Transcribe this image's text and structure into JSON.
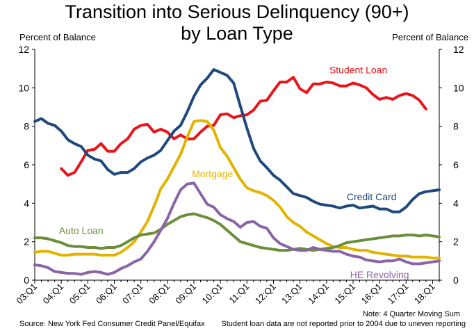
{
  "chart_data": {
    "type": "line",
    "title": [
      "Transition into Serious Delinquency (90+)",
      "by Loan Type"
    ],
    "ylabel_left": "Percent of Balance",
    "ylabel_right": "Percent of Balance",
    "ylim": [
      0,
      12
    ],
    "yticks": [
      0,
      2,
      4,
      6,
      8,
      10,
      12
    ],
    "xlim": [
      2003.0,
      2018.25
    ],
    "xticks": [
      "03:Q1",
      "04:Q1",
      "05:Q1",
      "06:Q1",
      "07:Q1",
      "08:Q1",
      "09:Q1",
      "10:Q1",
      "11:Q1",
      "12:Q1",
      "13:Q1",
      "14:Q1",
      "15:Q1",
      "16:Q1",
      "17:Q1",
      "18:Q1"
    ],
    "grid": false,
    "legend": "inline labels",
    "series": [
      {
        "name": "Student Loan",
        "color": "#e8161b",
        "start": 2004.0,
        "values": [
          5.8,
          5.45,
          5.6,
          6.15,
          6.75,
          6.8,
          7.1,
          6.7,
          6.7,
          7.1,
          7.35,
          7.85,
          8.05,
          8.1,
          7.7,
          7.85,
          7.7,
          7.35,
          7.55,
          7.35,
          7.35,
          7.7,
          8.0,
          8.05,
          8.6,
          8.65,
          8.45,
          8.55,
          8.6,
          8.85,
          9.3,
          9.35,
          9.85,
          10.3,
          10.3,
          10.55,
          9.95,
          9.75,
          10.2,
          10.2,
          10.3,
          10.25,
          10.1,
          10.1,
          10.25,
          10.15,
          10.0,
          9.65,
          9.4,
          9.5,
          9.4,
          9.6,
          9.7,
          9.6,
          9.35,
          8.9
        ]
      },
      {
        "name": "Credit Card",
        "color": "#1f497d",
        "start": 2003.0,
        "values": [
          8.25,
          8.4,
          8.15,
          8.05,
          7.75,
          7.3,
          7.1,
          6.95,
          6.5,
          6.3,
          6.2,
          5.75,
          5.5,
          5.6,
          5.6,
          5.8,
          6.15,
          6.35,
          6.5,
          6.75,
          7.25,
          7.75,
          8.05,
          8.75,
          9.55,
          10.15,
          10.5,
          10.95,
          10.8,
          10.65,
          10.25,
          9.05,
          7.9,
          6.85,
          6.2,
          5.85,
          5.45,
          5.2,
          4.85,
          4.5,
          4.4,
          4.3,
          4.1,
          3.95,
          3.9,
          3.85,
          3.75,
          3.85,
          3.9,
          3.75,
          3.8,
          3.85,
          3.7,
          3.7,
          3.55,
          3.55,
          3.8,
          4.2,
          4.5,
          4.6,
          4.65,
          4.7
        ]
      },
      {
        "name": "Mortgage",
        "color": "#e2b400",
        "start": 2003.0,
        "values": [
          1.45,
          1.5,
          1.5,
          1.4,
          1.3,
          1.3,
          1.35,
          1.35,
          1.35,
          1.35,
          1.3,
          1.3,
          1.3,
          1.45,
          1.7,
          2.0,
          2.5,
          3.05,
          3.85,
          4.75,
          5.25,
          5.9,
          6.55,
          7.45,
          8.25,
          8.3,
          8.25,
          7.8,
          6.9,
          6.45,
          5.85,
          5.25,
          4.8,
          4.65,
          4.55,
          4.4,
          4.15,
          3.8,
          3.3,
          3.0,
          2.8,
          2.5,
          2.3,
          2.1,
          1.9,
          1.75,
          1.7,
          1.7,
          1.6,
          1.55,
          1.55,
          1.45,
          1.4,
          1.35,
          1.3,
          1.25,
          1.25,
          1.2,
          1.2,
          1.2,
          1.15,
          1.15
        ]
      },
      {
        "name": "Auto Loan",
        "color": "#6b8e3a",
        "start": 2003.0,
        "values": [
          2.2,
          2.2,
          2.15,
          2.05,
          1.95,
          1.8,
          1.75,
          1.75,
          1.7,
          1.7,
          1.65,
          1.7,
          1.7,
          1.8,
          2.0,
          2.2,
          2.35,
          2.4,
          2.45,
          2.65,
          2.9,
          3.1,
          3.3,
          3.4,
          3.45,
          3.35,
          3.25,
          3.1,
          2.9,
          2.6,
          2.3,
          2.0,
          1.9,
          1.8,
          1.7,
          1.65,
          1.6,
          1.55,
          1.55,
          1.6,
          1.65,
          1.6,
          1.55,
          1.6,
          1.65,
          1.7,
          1.8,
          1.95,
          2.0,
          2.05,
          2.1,
          2.15,
          2.2,
          2.25,
          2.3,
          2.3,
          2.35,
          2.35,
          2.3,
          2.35,
          2.3,
          2.25
        ]
      },
      {
        "name": "HE Revolving",
        "color": "#8b64a8",
        "start": 2003.0,
        "values": [
          0.8,
          0.75,
          0.65,
          0.45,
          0.4,
          0.35,
          0.35,
          0.3,
          0.4,
          0.45,
          0.4,
          0.3,
          0.4,
          0.6,
          0.75,
          0.95,
          1.1,
          1.5,
          2.0,
          2.6,
          3.2,
          4.0,
          4.7,
          5.0,
          5.05,
          4.5,
          3.95,
          3.8,
          3.4,
          3.2,
          3.05,
          2.75,
          3.0,
          3.05,
          2.8,
          2.7,
          2.2,
          1.9,
          1.75,
          1.6,
          1.55,
          1.55,
          1.7,
          1.6,
          1.55,
          1.5,
          1.5,
          1.35,
          1.25,
          1.2,
          1.05,
          1.0,
          0.95,
          1.0,
          1.0,
          1.1,
          0.95,
          0.85,
          0.85,
          0.9,
          0.95,
          1.0
        ]
      }
    ],
    "annotations": {
      "left_axis_label": "Percent of Balance",
      "right_axis_label": "Percent of Balance",
      "note": "Note: 4 Quarter Moving Sum",
      "student_loan_note": "Student loan data are not reported prior to 2004 due to uneven reporting",
      "source": "Source: New York Fed Consumer Credit Panel/Equifax"
    }
  }
}
